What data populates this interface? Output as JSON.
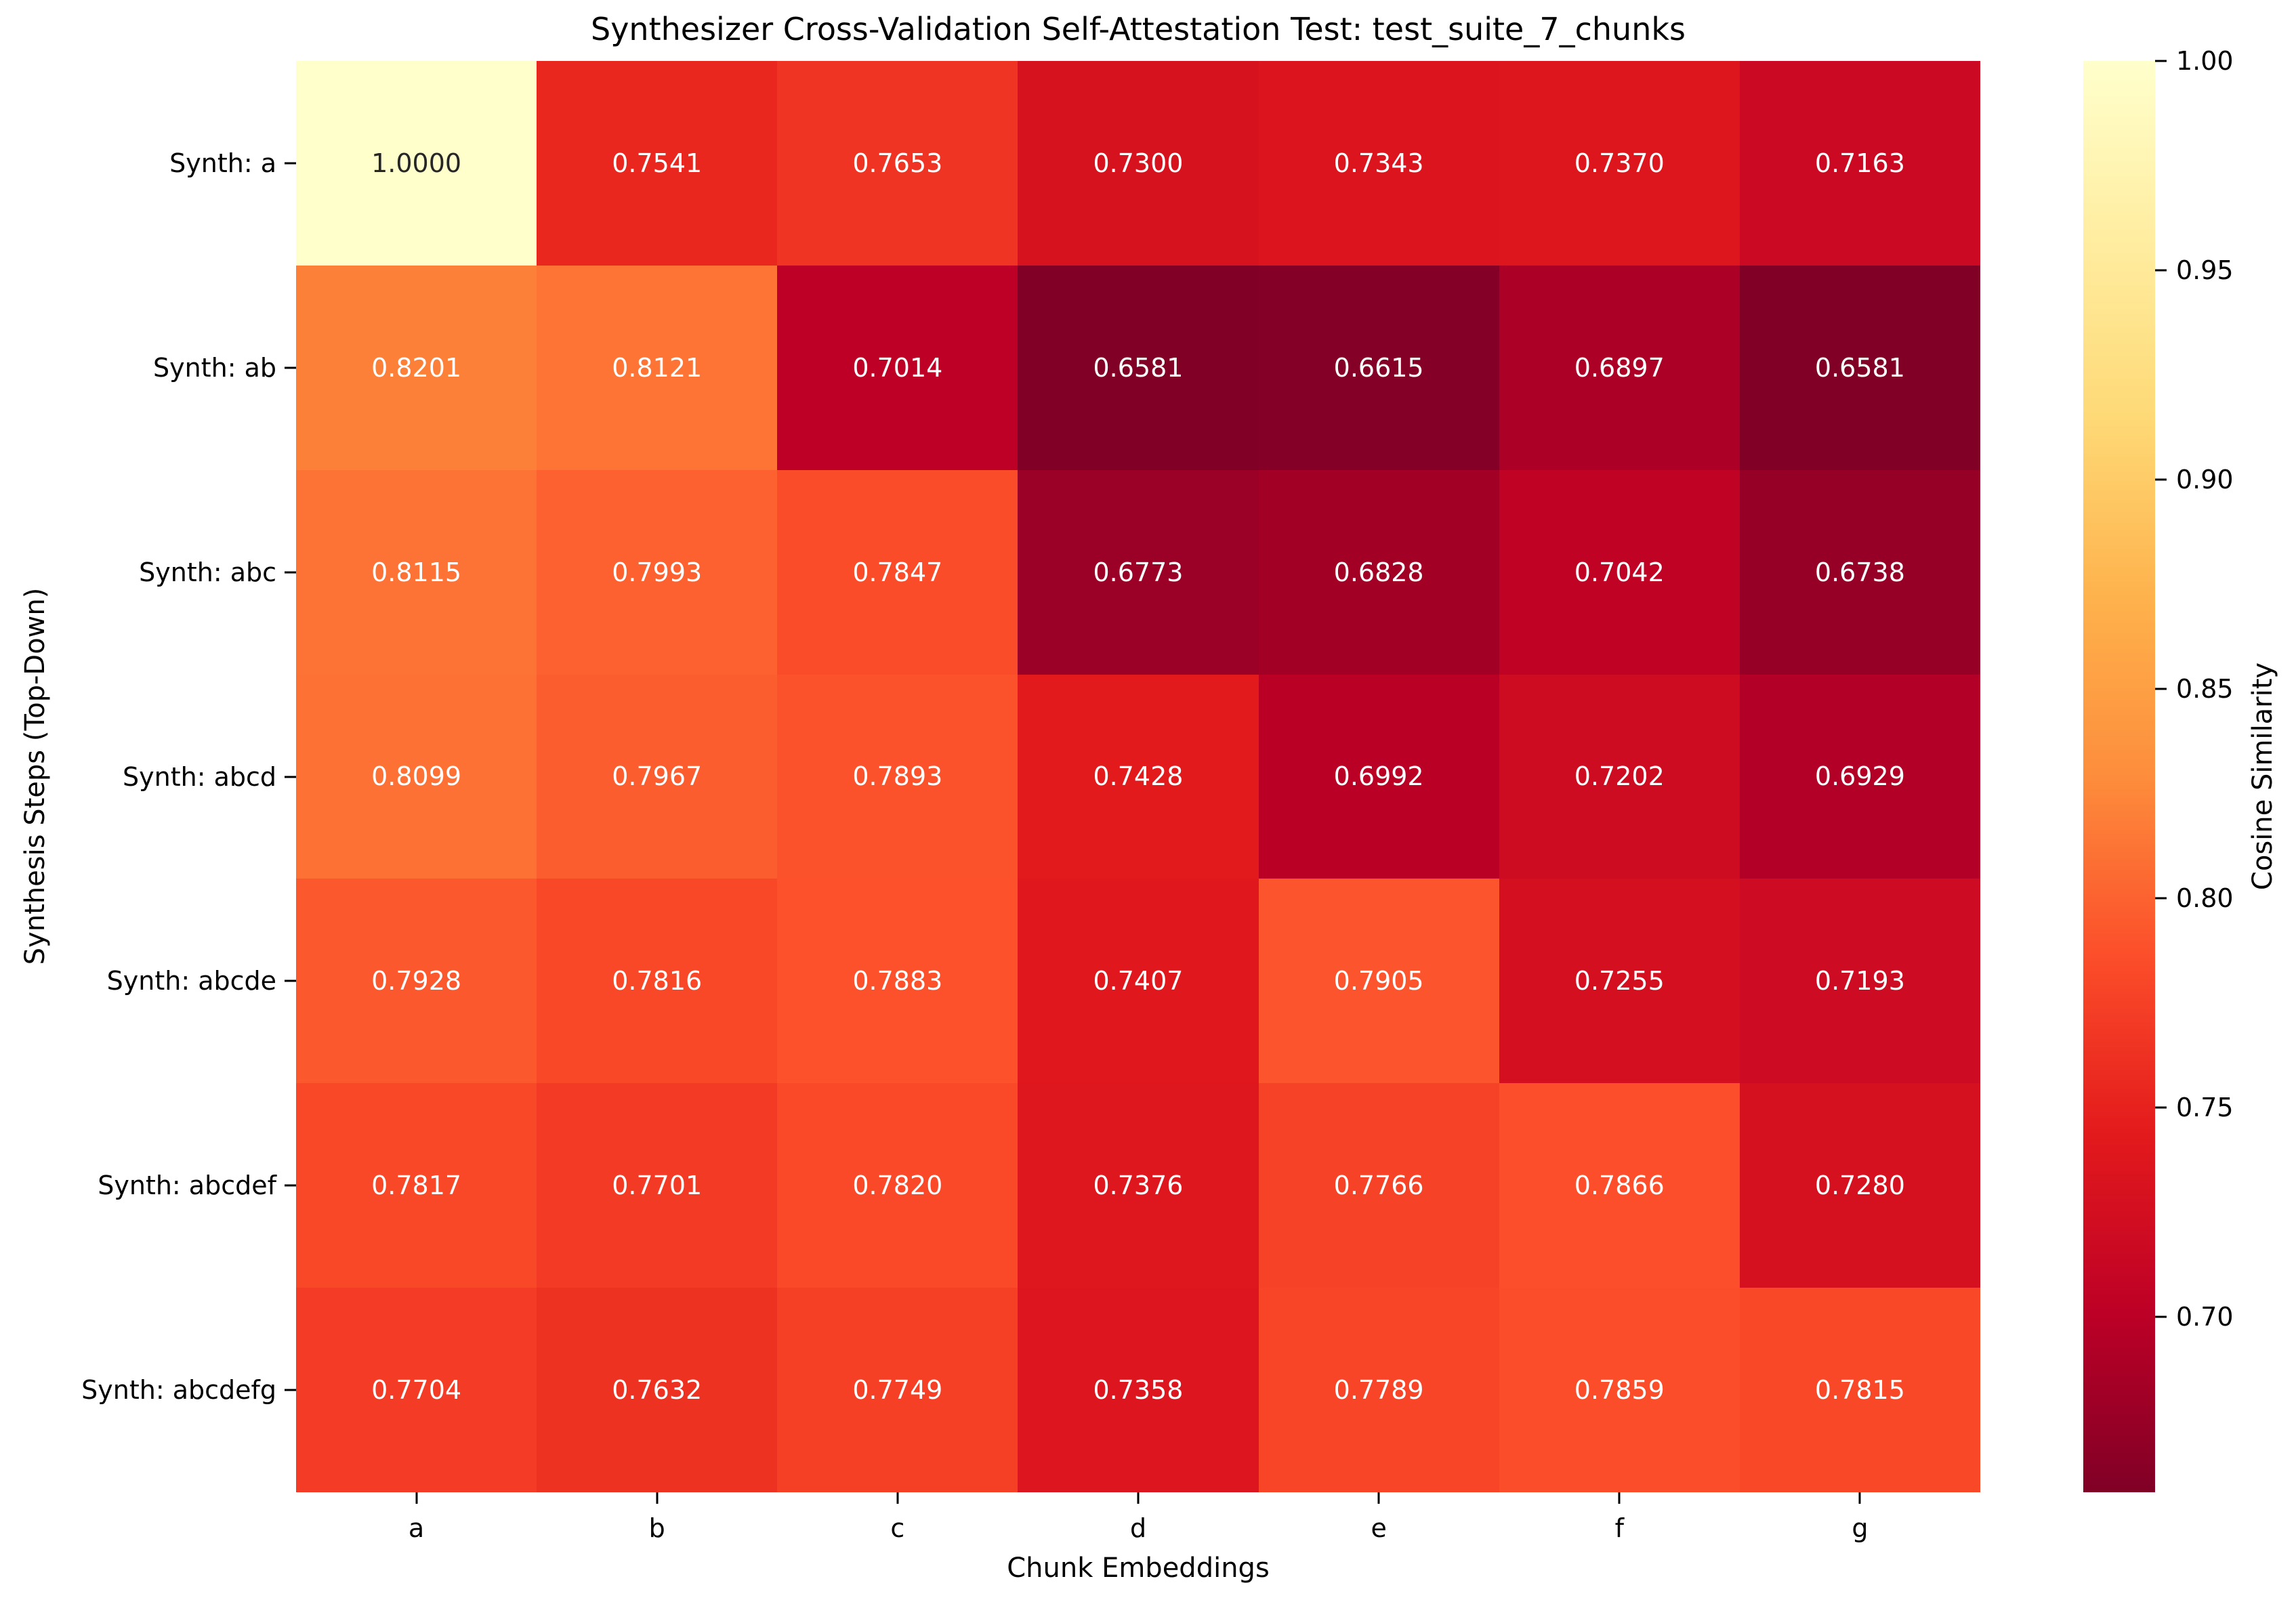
{
  "chart_data": {
    "type": "heatmap",
    "title": "Synthesizer Cross-Validation Self-Attestation Test: test_suite_7_chunks",
    "xlabel": "Chunk Embeddings",
    "ylabel": "Synthesis Steps (Top-Down)",
    "x_categories": [
      "a",
      "b",
      "c",
      "d",
      "e",
      "f",
      "g"
    ],
    "y_categories": [
      "Synth: a",
      "Synth: ab",
      "Synth: abc",
      "Synth: abcd",
      "Synth: abcde",
      "Synth: abcdef",
      "Synth: abcdefg"
    ],
    "values": [
      [
        1.0,
        0.7541,
        0.7653,
        0.73,
        0.7343,
        0.737,
        0.7163
      ],
      [
        0.8201,
        0.8121,
        0.7014,
        0.6581,
        0.6615,
        0.6897,
        0.6581
      ],
      [
        0.8115,
        0.7993,
        0.7847,
        0.6773,
        0.6828,
        0.7042,
        0.6738
      ],
      [
        0.8099,
        0.7967,
        0.7893,
        0.7428,
        0.6992,
        0.7202,
        0.6929
      ],
      [
        0.7928,
        0.7816,
        0.7883,
        0.7407,
        0.7905,
        0.7255,
        0.7193
      ],
      [
        0.7817,
        0.7701,
        0.782,
        0.7376,
        0.7766,
        0.7866,
        0.728
      ],
      [
        0.7704,
        0.7632,
        0.7749,
        0.7358,
        0.7789,
        0.7859,
        0.7815
      ]
    ],
    "annotation_decimals": 4,
    "vmin": 0.6581,
    "vmax": 1.0,
    "grid": false,
    "legend_position": "colorbar-right",
    "colormap": {
      "name": "YlOrRd_r",
      "stops": [
        "#ffffcc",
        "#ffeda0",
        "#fed976",
        "#feb24c",
        "#fd8d3c",
        "#fc4e2a",
        "#e31a1c",
        "#bd0026",
        "#800026"
      ]
    },
    "annotation_text_colors": {
      "light_cell": "#262626",
      "dark_cell": "#ffffff"
    },
    "colorbar": {
      "label": "Cosine Similarity",
      "ticks": [
        {
          "label": "1.00",
          "value": 1.0
        },
        {
          "label": "0.95",
          "value": 0.95
        },
        {
          "label": "0.90",
          "value": 0.9
        },
        {
          "label": "0.85",
          "value": 0.85
        },
        {
          "label": "0.80",
          "value": 0.8
        },
        {
          "label": "0.75",
          "value": 0.75
        },
        {
          "label": "0.70",
          "value": 0.7
        }
      ]
    }
  }
}
